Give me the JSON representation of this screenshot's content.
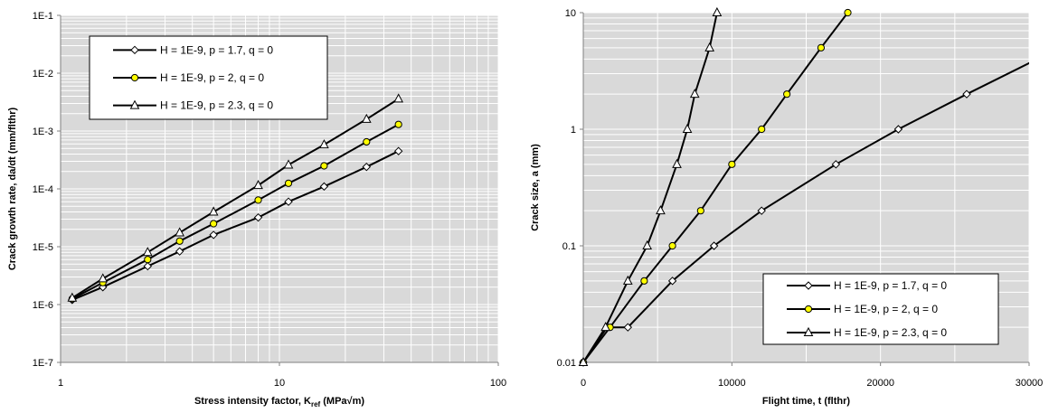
{
  "chart_data": [
    {
      "type": "line",
      "title": "",
      "xlabel_main": "Stress intensity factor, K",
      "xlabel_sub": "ref",
      "xlabel_unit": " (MPa√m)",
      "ylabel": "Crack growth rate, da/dt (mm/flthr)",
      "x_scale": "log",
      "y_scale": "log",
      "xlim": [
        1,
        100
      ],
      "ylim": [
        1e-07,
        0.1
      ],
      "xtick_labels": [
        "1",
        "10",
        "100"
      ],
      "ytick_labels": [
        "1E-7",
        "1E-6",
        "1E-5",
        "1E-4",
        "1E-3",
        "1E-2",
        "1E-1"
      ],
      "grid": true,
      "legend_position": "top-left",
      "series": [
        {
          "name": "H = 1E-9, p = 1.7, q = 0",
          "marker": "diamond",
          "marker_color": "#ffffff",
          "x": [
            1.13,
            1.56,
            2.5,
            3.5,
            5,
            8,
            11,
            16,
            25,
            35
          ],
          "y": [
            1.2e-06,
            2e-06,
            4.6e-06,
            8.3e-06,
            1.6e-05,
            3.2e-05,
            6e-05,
            0.00011,
            0.00024,
            0.00045
          ]
        },
        {
          "name": "H = 1E-9, p = 2, q = 0",
          "marker": "circle",
          "marker_color": "#ffff00",
          "x": [
            1.13,
            1.56,
            2.5,
            3.5,
            5,
            8,
            11,
            16,
            25,
            35
          ],
          "y": [
            1.25e-06,
            2.4e-06,
            6e-06,
            1.25e-05,
            2.5e-05,
            6.4e-05,
            0.000125,
            0.00025,
            0.00065,
            0.0013
          ]
        },
        {
          "name": "H = 1E-9, p = 2.3, q = 0",
          "marker": "triangle",
          "marker_color": "#ffffff",
          "x": [
            1.13,
            1.56,
            2.5,
            3.5,
            5,
            8,
            11,
            16,
            25,
            35
          ],
          "y": [
            1.3e-06,
            2.8e-06,
            8e-06,
            1.75e-05,
            4e-05,
            0.000115,
            0.00026,
            0.00058,
            0.0016,
            0.0036
          ]
        }
      ]
    },
    {
      "type": "line",
      "title": "",
      "xlabel": "Flight time, t (flthr)",
      "ylabel": "Crack size, a (mm)",
      "x_scale": "linear",
      "y_scale": "log",
      "xlim": [
        0,
        30000
      ],
      "ylim": [
        0.01,
        10
      ],
      "xtick_labels": [
        "0",
        "10000",
        "20000",
        "30000"
      ],
      "ytick_labels": [
        "0.01",
        "0.1",
        "1",
        "10"
      ],
      "grid": true,
      "legend_position": "bottom-right",
      "series": [
        {
          "name": "H = 1E-9, p = 1.7, q = 0",
          "marker": "diamond",
          "marker_color": "#ffffff",
          "x": [
            0,
            1600,
            3000,
            6000,
            8800,
            12000,
            17000,
            21200,
            25800,
            30200
          ],
          "y": [
            0.01,
            0.02,
            0.02,
            0.05,
            0.1,
            0.2,
            0.5,
            1.0,
            2.0,
            3.8
          ],
          "marked_points": [
            0,
            1,
            2,
            3,
            4,
            5,
            6,
            7,
            8
          ]
        },
        {
          "name": "H = 1E-9, p = 2, q = 0",
          "marker": "circle",
          "marker_color": "#ffff00",
          "x": [
            0,
            1800,
            4100,
            6000,
            7900,
            10000,
            12000,
            13700,
            16000,
            17800
          ],
          "y": [
            0.01,
            0.02,
            0.05,
            0.1,
            0.2,
            0.5,
            1.0,
            2.0,
            5.0,
            10.0
          ],
          "marked_points": [
            0,
            1,
            2,
            3,
            4,
            5,
            6,
            7,
            8,
            9
          ]
        },
        {
          "name": "H = 1E-9, p = 2.3, q = 0",
          "marker": "triangle",
          "marker_color": "#ffffff",
          "x": [
            0,
            1500,
            3000,
            4300,
            5200,
            6300,
            7000,
            7500,
            8500,
            9000
          ],
          "y": [
            0.01,
            0.02,
            0.05,
            0.1,
            0.2,
            0.5,
            1.0,
            2.0,
            5.0,
            10.0
          ],
          "marked_points": [
            0,
            1,
            2,
            3,
            4,
            5,
            6,
            7,
            8,
            9
          ]
        }
      ]
    }
  ]
}
